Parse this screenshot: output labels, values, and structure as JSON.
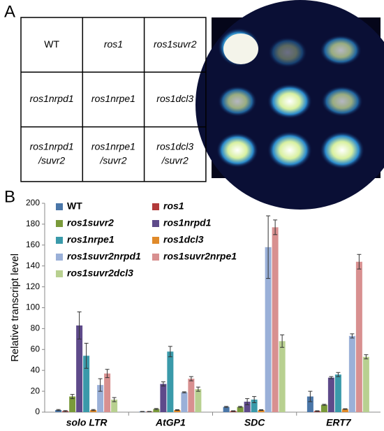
{
  "panels": {
    "a": "A",
    "b": "B"
  },
  "grid": {
    "rows": [
      [
        [
          "WT"
        ],
        [
          "ros1"
        ],
        [
          "ros1suvr2"
        ]
      ],
      [
        [
          "ros1nrpd1"
        ],
        [
          "ros1nrpe1"
        ],
        [
          "ros1dcl3"
        ]
      ],
      [
        [
          "ros1nrpd1",
          "/suvr2"
        ],
        [
          "ros1nrpe1",
          "/suvr2"
        ],
        [
          "ros1dcl3",
          "/suvr2"
        ]
      ]
    ]
  },
  "chart_data": {
    "type": "bar",
    "ylabel": "Relative transcript level",
    "categories": [
      "solo LTR",
      "AtGP1",
      "SDC",
      "ERT7"
    ],
    "ylim": [
      0,
      200
    ],
    "yticks": [
      0,
      20,
      40,
      60,
      80,
      100,
      120,
      140,
      160,
      180,
      200
    ],
    "grid": false,
    "series": [
      {
        "name": "WT",
        "color": "#4a76a8",
        "values": [
          2,
          0.5,
          5,
          15
        ],
        "errors": [
          0.5,
          0.2,
          0.5,
          5
        ]
      },
      {
        "name": "ros1",
        "color": "#b23a3a",
        "values": [
          1,
          0.5,
          1,
          1
        ],
        "errors": [
          0.5,
          0.2,
          0.3,
          0.3
        ]
      },
      {
        "name": "ros1suvr2",
        "color": "#7a9a3a",
        "values": [
          15,
          3,
          5,
          7
        ],
        "errors": [
          2,
          0.5,
          0.5,
          0.5
        ]
      },
      {
        "name": "ros1nrpd1",
        "color": "#5e4a8a",
        "values": [
          83,
          27,
          10,
          33
        ],
        "errors": [
          13,
          2,
          3,
          1
        ]
      },
      {
        "name": "ros1nrpe1",
        "color": "#3a9aaa",
        "values": [
          54,
          58,
          12,
          36
        ],
        "errors": [
          12,
          5,
          3,
          2
        ]
      },
      {
        "name": "ros1dcl3",
        "color": "#e08a2a",
        "values": [
          2,
          2,
          2,
          3
        ],
        "errors": [
          0.5,
          0.3,
          0.3,
          0.3
        ]
      },
      {
        "name": "ros1suvr2nrpd1",
        "color": "#9ab0d8",
        "values": [
          26,
          19,
          158,
          73
        ],
        "errors": [
          6,
          0.5,
          30,
          2
        ]
      },
      {
        "name": "ros1suvr2nrpe1",
        "color": "#d89090",
        "values": [
          37,
          32,
          177,
          144
        ],
        "errors": [
          4,
          2,
          7,
          7
        ]
      },
      {
        "name": "ros1suvr2dcl3",
        "color": "#b8d090",
        "values": [
          12,
          22,
          68,
          53
        ],
        "errors": [
          2,
          2,
          6,
          2
        ]
      }
    ]
  }
}
